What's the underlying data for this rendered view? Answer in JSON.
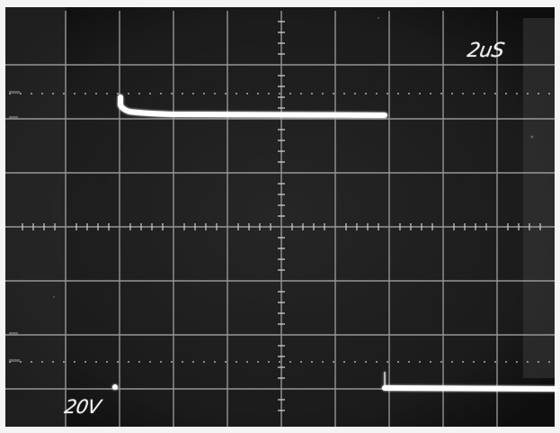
{
  "scope": {
    "time_per_div": "2uS",
    "volts_per_div": "20V"
  },
  "colors": {
    "screen": "#1a1a1a",
    "grid": "#c8c8c8",
    "trace": "#ffffff"
  }
}
